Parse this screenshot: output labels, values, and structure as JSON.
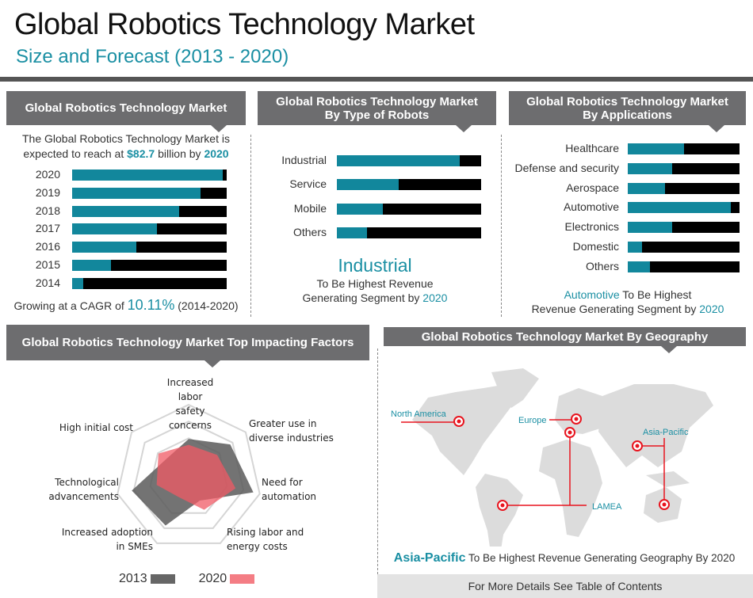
{
  "header": {
    "title": "Global Robotics Technology Market",
    "subtitle": "Size and Forecast (2013 - 2020)"
  },
  "market": {
    "heading": "Global Robotics Technology Market",
    "intro_1": "The Global Robotics Technology Market is",
    "intro_2": "expected to reach at ",
    "value": "$82.7",
    "intro_3": " billion by ",
    "year": "2020",
    "cagr_prefix": "Growing at a CAGR of ",
    "cagr": "10.11%",
    "cagr_suffix": " (2014-2020)"
  },
  "types": {
    "heading_1": "Global Robotics Technology Market",
    "heading_2": "By  Type of Robots",
    "highlight": "Industrial",
    "note_1": "To Be Highest Revenue",
    "note_2": "Generating Segment by ",
    "note_year": "2020"
  },
  "applications": {
    "heading_1": "Global Robotics Technology Market",
    "heading_2": "By Applications",
    "highlight": "Automotive",
    "note_1": " To Be Highest",
    "note_2": "Revenue Generating Segment by ",
    "note_year": "2020"
  },
  "factors": {
    "heading": "Global Robotics Technology Market Top Impacting Factors"
  },
  "geography": {
    "heading": "Global Robotics Technology Market By Geography",
    "regions": [
      "North America",
      "Europe",
      "Asia-Pacific",
      "LAMEA"
    ],
    "highlight": "Asia-Pacific",
    "note": " To Be Highest Revenue Generating Geography By 2020",
    "footer": "For More Details See Table of Contents"
  },
  "colors": {
    "teal": "#12879c",
    "black": "#000000",
    "header_grey": "#6d6d6f",
    "series_2013": "#666666",
    "series_2020": "#f07a80",
    "marker_red": "#e8141e"
  },
  "chart_data": [
    {
      "type": "bar",
      "orientation": "horizontal",
      "categories": [
        "2020",
        "2019",
        "2018",
        "2017",
        "2016",
        "2015",
        "2014"
      ],
      "values_percent": [
        97.5,
        83,
        69,
        55,
        41.5,
        25,
        7
      ]
    },
    {
      "type": "bar",
      "orientation": "horizontal",
      "categories": [
        "Industrial",
        "Service",
        "Mobile",
        "Others"
      ],
      "values_percent": [
        85,
        43,
        32,
        21
      ]
    },
    {
      "type": "bar",
      "orientation": "horizontal",
      "categories": [
        "Healthcare",
        "Defense and security",
        "Aerospace",
        "Automotive",
        "Electronics",
        "Domestic",
        "Others"
      ],
      "values_percent": [
        50,
        40,
        33,
        92,
        40,
        13,
        20
      ]
    },
    {
      "type": "radar",
      "axes": [
        [
          "Increased labor",
          "safety concerns"
        ],
        [
          "Greater use in",
          "diverse industries"
        ],
        [
          "Need for",
          "automation"
        ],
        [
          "Rising labor and",
          "energy costs"
        ],
        [
          "Increased adoption",
          "in SMEs"
        ],
        [
          "Technological",
          "advancements"
        ],
        [
          "High initial cost"
        ]
      ],
      "range": [
        0,
        1
      ],
      "series": [
        {
          "name": "2013",
          "values": [
            0.53,
            0.73,
            0.91,
            0.35,
            0.73,
            0.8,
            0.4
          ]
        },
        {
          "name": "2020",
          "values": [
            0.45,
            0.5,
            0.66,
            0.49,
            0.3,
            0.45,
            0.53
          ]
        }
      ],
      "legend": "bottom"
    }
  ]
}
